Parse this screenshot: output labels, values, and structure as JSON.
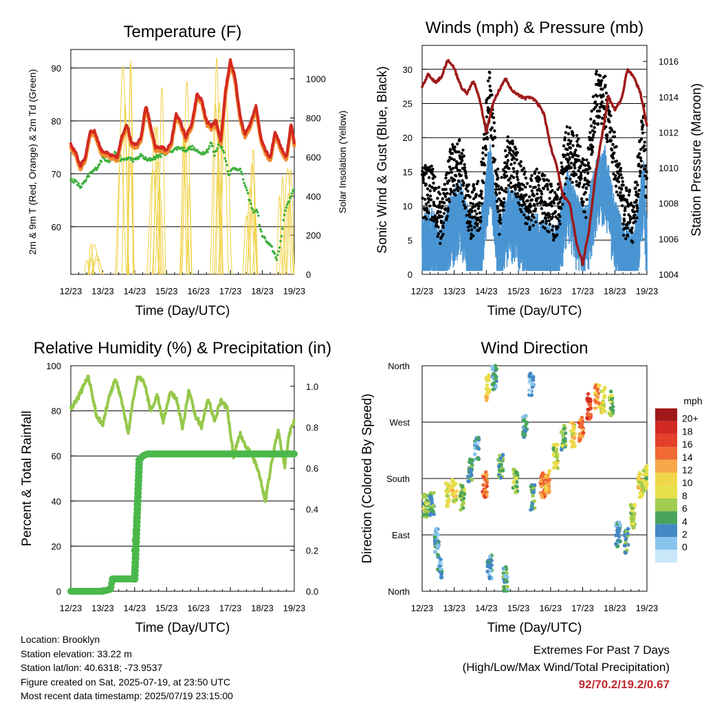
{
  "figure": {
    "location": "Location: Brooklyn",
    "elevation": "Station elevation: 33.22 m",
    "latlon": "Station lat/lon: 40.6318; -73.9537",
    "created": "Figure created on Sat, 2025-07-19, at 23:50 UTC",
    "recent": "Most recent data timestamp: 2025/07/19 23:15:00",
    "extremes_title": "Extremes For Past 7 Days",
    "extremes_subtitle": "(High/Low/Max Wind/Total Precipitation)",
    "extremes_values": "92/70.2/19.2/0.67"
  },
  "colors": {
    "temp": "#d42a20",
    "temp_9m": "#f08a30",
    "dewpoint": "#3cb03c",
    "solar": "#f0d040",
    "wind": "#4a95d2",
    "gust": "#000000",
    "pressure": "#9e1a1a",
    "rh": "#96c84a",
    "precip": "#4ab84a"
  },
  "chart_data": [
    {
      "type": "line",
      "title": "Temperature (F)",
      "xlabel": "Time (Day/UTC)",
      "ylabel": "2m & 9m T (Red, Orange) & 2m Td (Green)",
      "y2label": "Solar Insolation (Yellow)",
      "ylim": [
        51,
        93.5
      ],
      "y2lim": [
        0,
        1150
      ],
      "yticks": [
        60,
        70,
        80,
        90
      ],
      "y2ticks": [
        0,
        200,
        400,
        600,
        800,
        1000
      ],
      "x_ticklabels": [
        "12/23",
        "13/23",
        "14/23",
        "15/23",
        "16/23",
        "17/23",
        "18/23",
        "19/23"
      ],
      "xlim": [
        0,
        7
      ],
      "series": [
        {
          "key": "t2m",
          "x": [
            0,
            0.15,
            0.3,
            0.45,
            0.6,
            0.75,
            0.95,
            1.1,
            1.25,
            1.45,
            1.6,
            1.75,
            1.9,
            2.05,
            2.2,
            2.35,
            2.5,
            2.65,
            2.85,
            3.0,
            3.15,
            3.3,
            3.45,
            3.6,
            3.8,
            3.95,
            4.1,
            4.25,
            4.4,
            4.55,
            4.7,
            4.85,
            5.0,
            5.15,
            5.3,
            5.45,
            5.6,
            5.8,
            5.95,
            6.1,
            6.25,
            6.4,
            6.55,
            6.75,
            6.9,
            7.0
          ],
          "values": [
            75.5,
            74,
            71.5,
            73,
            78,
            78,
            74.5,
            74,
            73.5,
            73,
            77,
            79.5,
            76,
            75.5,
            77,
            83,
            79,
            75,
            75,
            74.5,
            76,
            81.5,
            79.5,
            77,
            79.5,
            85,
            84,
            80,
            79,
            80,
            76,
            86,
            91.5,
            88,
            81,
            77.5,
            79,
            83,
            77,
            74.5,
            73,
            78,
            75.5,
            73,
            79.5,
            76
          ]
        },
        {
          "key": "dewpoint",
          "x": [
            0,
            0.15,
            0.3,
            0.45,
            0.6,
            0.8,
            1.0,
            1.2,
            1.4,
            1.6,
            1.8,
            2.0,
            2.2,
            2.4,
            2.6,
            2.8,
            3.0,
            3.2,
            3.4,
            3.6,
            3.8,
            4.0,
            4.15,
            4.3,
            4.4,
            4.5,
            4.65,
            4.8,
            4.95,
            5.1,
            5.3,
            5.5,
            5.7,
            5.85,
            5.95,
            6.15,
            6.3,
            6.45,
            6.55,
            6.7,
            6.85,
            7.0
          ],
          "values": [
            69,
            68.5,
            67.5,
            68.5,
            70,
            71,
            73,
            72.5,
            74,
            72.5,
            73,
            72.5,
            73.5,
            72.5,
            73,
            73.5,
            74,
            74.5,
            75,
            74.5,
            75,
            74,
            74,
            74.5,
            76,
            73.5,
            76,
            74,
            70,
            71,
            71,
            67,
            63,
            63,
            59,
            57,
            56,
            54,
            56,
            63,
            65,
            67.5
          ]
        },
        {
          "key": "solar",
          "type": "daily-peaks",
          "peaks": [
            0,
            1030,
            1060,
            1140,
            930,
            1090,
            1000,
            850,
            1140,
            1080,
            620,
            1090,
            540,
            880,
            400
          ],
          "peak_times": [
            0.55,
            0.85,
            1.55,
            1.85,
            2.55,
            2.85,
            3.55,
            3.85,
            4.55,
            4.85,
            5.55,
            5.85,
            6.55,
            6.85,
            7.0
          ]
        }
      ]
    },
    {
      "type": "line",
      "title": "Winds (mph) & Pressure (mb)",
      "xlabel": "Time (Day/UTC)",
      "ylabel": "Sonic Wind & Gust (Blue, Black)",
      "y2label": "Station Pressure (Maroon)",
      "ylim": [
        0,
        33.5
      ],
      "y2lim": [
        1004,
        1016.9
      ],
      "yticks": [
        0,
        5,
        10,
        15,
        20,
        25,
        30
      ],
      "y2ticks": [
        1004,
        1006,
        1008,
        1010,
        1012,
        1014,
        1016
      ],
      "x_ticklabels": [
        "12/23",
        "13/23",
        "14/23",
        "15/23",
        "16/23",
        "17/23",
        "18/23",
        "19/23"
      ],
      "xlim": [
        0,
        7
      ],
      "series": [
        {
          "key": "pressure",
          "x": [
            0,
            0.2,
            0.4,
            0.6,
            0.8,
            1.0,
            1.2,
            1.4,
            1.6,
            1.8,
            2.0,
            2.2,
            2.4,
            2.6,
            2.8,
            3.0,
            3.2,
            3.4,
            3.6,
            3.8,
            4.0,
            4.2,
            4.4,
            4.6,
            4.8,
            5.0,
            5.2,
            5.4,
            5.6,
            5.8,
            6.0,
            6.2,
            6.4,
            6.6,
            6.8,
            7.0
          ],
          "values": [
            1014.6,
            1015.3,
            1014.8,
            1015.1,
            1016.1,
            1015.6,
            1014.6,
            1014.2,
            1014.9,
            1013.8,
            1012.0,
            1013.6,
            1014.4,
            1015.0,
            1014.4,
            1014.1,
            1013.9,
            1014.0,
            1013.6,
            1013.0,
            1011.2,
            1010.0,
            1008.4,
            1008.0,
            1005.8,
            1004.6,
            1006.5,
            1009.6,
            1011.8,
            1014.0,
            1013.3,
            1013.8,
            1015.6,
            1015.1,
            1014.2,
            1012.4
          ]
        },
        {
          "key": "wind",
          "description_source": "sustained",
          "x": [
            0,
            0.3,
            0.6,
            0.9,
            1.2,
            1.5,
            1.8,
            2.1,
            2.4,
            2.7,
            3.0,
            3.3,
            3.6,
            3.9,
            4.2,
            4.5,
            4.8,
            5.1,
            5.4,
            5.7,
            6.0,
            6.3,
            6.6,
            6.9,
            7.0
          ],
          "values": [
            6,
            7,
            4,
            9,
            11,
            6,
            5,
            17,
            5,
            10,
            9,
            6,
            6,
            5,
            4,
            13,
            9,
            7,
            14,
            16,
            8,
            5,
            4,
            14,
            6
          ]
        },
        {
          "key": "gust",
          "x": [
            0,
            0.3,
            0.6,
            0.9,
            1.2,
            1.5,
            1.8,
            2.1,
            2.4,
            2.7,
            3.0,
            3.3,
            3.6,
            3.9,
            4.2,
            4.5,
            4.8,
            5.1,
            5.4,
            5.7,
            6.0,
            6.3,
            6.6,
            6.9,
            7.0
          ],
          "values": [
            12,
            12,
            8,
            15,
            16,
            9,
            10,
            27,
            9,
            17,
            14,
            10,
            12,
            10,
            8,
            18,
            17,
            12,
            26,
            25,
            17,
            9,
            8,
            22,
            10
          ]
        }
      ]
    },
    {
      "type": "line",
      "title": "Relative Humidity (%) & Precipitation (in)",
      "xlabel": "Time (Day/UTC)",
      "ylabel": "Percent & Total Rainfall",
      "ylim": [
        0,
        100
      ],
      "y2lim": [
        0,
        1.1
      ],
      "yticks": [
        0,
        20,
        40,
        60,
        80,
        100
      ],
      "y2ticks": [
        "0.0",
        "0.2",
        "0.4",
        "0.6",
        "0.8",
        "1.0"
      ],
      "x_ticklabels": [
        "12/23",
        "13/23",
        "14/23",
        "15/23",
        "16/23",
        "17/23",
        "18/23",
        "19/23"
      ],
      "xlim": [
        0,
        7
      ],
      "series": [
        {
          "key": "rh",
          "x": [
            0,
            0.2,
            0.4,
            0.55,
            0.65,
            0.8,
            1.0,
            1.2,
            1.4,
            1.6,
            1.8,
            1.95,
            2.1,
            2.3,
            2.5,
            2.7,
            2.9,
            3.1,
            3.3,
            3.5,
            3.7,
            3.9,
            4.1,
            4.3,
            4.5,
            4.7,
            4.9,
            5.1,
            5.3,
            5.5,
            5.7,
            5.9,
            6.1,
            6.3,
            6.5,
            6.7,
            6.85,
            7.0
          ],
          "values": [
            81,
            85,
            91,
            95,
            89,
            78,
            74,
            86,
            94,
            84,
            70,
            85,
            95,
            93,
            80,
            87,
            75,
            88,
            86,
            72,
            89,
            78,
            73,
            86,
            75,
            85,
            81,
            60,
            70,
            64,
            60,
            52,
            40,
            58,
            72,
            55,
            70,
            76
          ]
        },
        {
          "key": "precip",
          "x": [
            0,
            1.0,
            1.25,
            1.3,
            2.0,
            2.0,
            2.05,
            2.1,
            2.15,
            2.25,
            2.4,
            7.0
          ],
          "values": [
            0,
            0,
            0.01,
            0.06,
            0.06,
            0.2,
            0.32,
            0.5,
            0.64,
            0.66,
            0.67,
            0.67
          ]
        }
      ]
    },
    {
      "type": "scatter",
      "title": "Wind Direction",
      "xlabel": "Time (Day/UTC)",
      "ylabel": "Direction (Colored By Speed)",
      "ylim": [
        0,
        360
      ],
      "yticks": [
        0,
        90,
        180,
        270,
        360
      ],
      "yticklabels": [
        "North",
        "East",
        "South",
        "West",
        "North"
      ],
      "x_ticklabels": [
        "12/23",
        "13/23",
        "14/23",
        "15/23",
        "16/23",
        "17/23",
        "18/23",
        "19/23"
      ],
      "xlim": [
        0,
        7
      ],
      "legend": {
        "title": "mph",
        "labels": [
          "20+",
          "18",
          "16",
          "14",
          "12",
          "10",
          "8",
          "6",
          "4",
          "2",
          "0"
        ],
        "colors": [
          "#a01919",
          "#d22a22",
          "#e3402a",
          "#f06a32",
          "#f8a848",
          "#f2d64a",
          "#e6e04a",
          "#a0cc50",
          "#4aa55a",
          "#4488c4",
          "#88c4ec",
          "#c8e8fa"
        ]
      },
      "clusters": [
        {
          "t": 0.1,
          "dir": 135,
          "speed": 7
        },
        {
          "t": 0.3,
          "dir": 140,
          "speed": 6
        },
        {
          "t": 0.45,
          "dir": 80,
          "speed": 4
        },
        {
          "t": 0.55,
          "dir": 40,
          "speed": 3
        },
        {
          "t": 0.8,
          "dir": 155,
          "speed": 10
        },
        {
          "t": 1.0,
          "dir": 160,
          "speed": 11
        },
        {
          "t": 1.25,
          "dir": 150,
          "speed": 8
        },
        {
          "t": 1.5,
          "dir": 195,
          "speed": 6
        },
        {
          "t": 1.7,
          "dir": 230,
          "speed": 3
        },
        {
          "t": 1.95,
          "dir": 170,
          "speed": 16
        },
        {
          "t": 2.05,
          "dir": 325,
          "speed": 12
        },
        {
          "t": 2.25,
          "dir": 340,
          "speed": 4
        },
        {
          "t": 2.1,
          "dir": 40,
          "speed": 4
        },
        {
          "t": 2.45,
          "dir": 200,
          "speed": 6
        },
        {
          "t": 2.6,
          "dir": 20,
          "speed": 5
        },
        {
          "t": 2.9,
          "dir": 175,
          "speed": 8
        },
        {
          "t": 3.2,
          "dir": 265,
          "speed": 4
        },
        {
          "t": 3.4,
          "dir": 330,
          "speed": 2
        },
        {
          "t": 3.45,
          "dir": 150,
          "speed": 6
        },
        {
          "t": 3.75,
          "dir": 170,
          "speed": 15
        },
        {
          "t": 3.9,
          "dir": 175,
          "speed": 14
        },
        {
          "t": 4.15,
          "dir": 215,
          "speed": 9
        },
        {
          "t": 4.4,
          "dir": 245,
          "speed": 7
        },
        {
          "t": 4.7,
          "dir": 250,
          "speed": 11
        },
        {
          "t": 4.95,
          "dir": 260,
          "speed": 16
        },
        {
          "t": 5.2,
          "dir": 295,
          "speed": 18
        },
        {
          "t": 5.45,
          "dir": 310,
          "speed": 14
        },
        {
          "t": 5.65,
          "dir": 305,
          "speed": 10
        },
        {
          "t": 5.9,
          "dir": 300,
          "speed": 7
        },
        {
          "t": 6.1,
          "dir": 90,
          "speed": 4
        },
        {
          "t": 6.35,
          "dir": 80,
          "speed": 6
        },
        {
          "t": 6.55,
          "dir": 120,
          "speed": 8
        },
        {
          "t": 6.8,
          "dir": 170,
          "speed": 11
        },
        {
          "t": 6.95,
          "dir": 180,
          "speed": 9
        }
      ]
    }
  ]
}
